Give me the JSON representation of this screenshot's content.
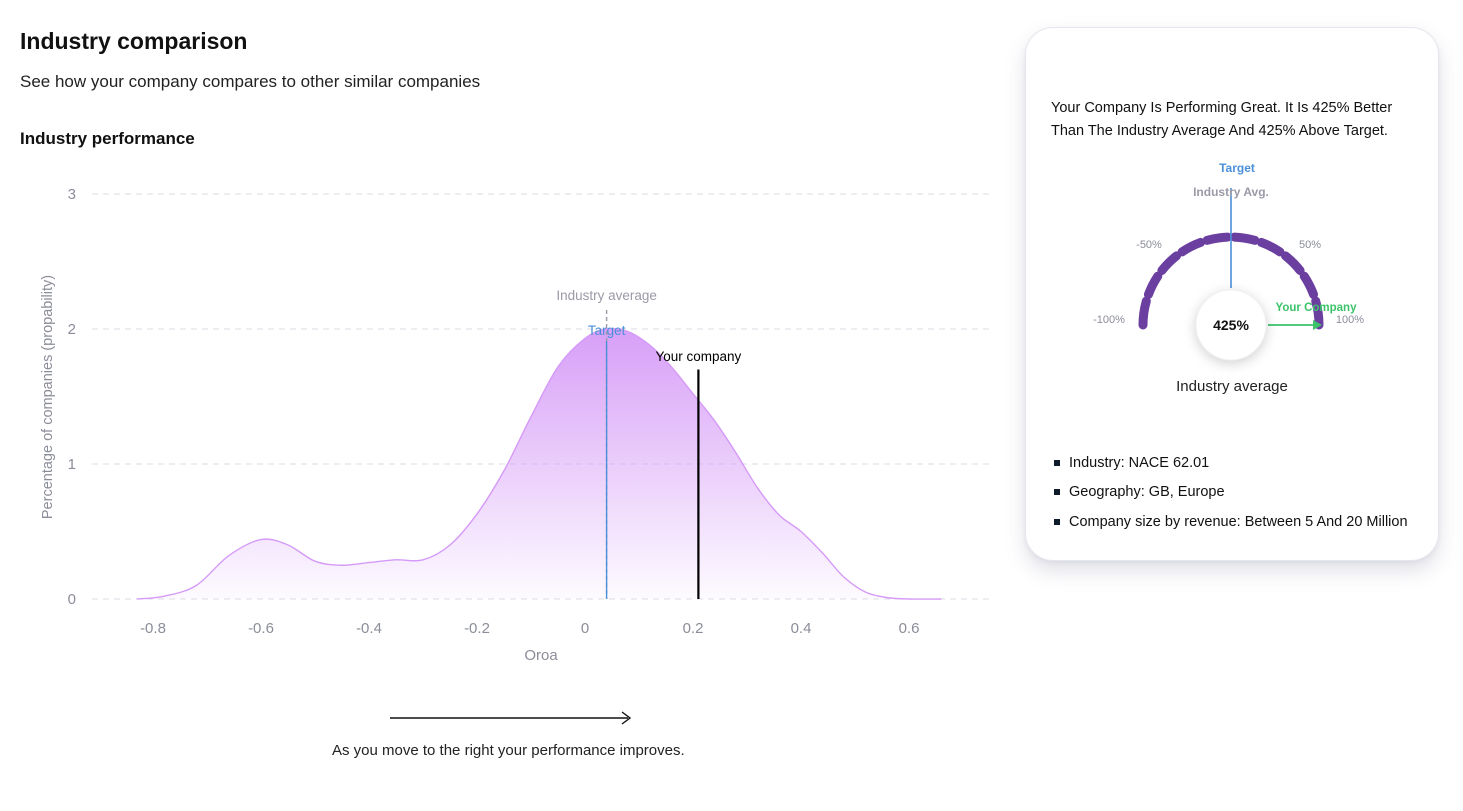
{
  "page": {
    "title": "Industry comparison",
    "subtitle": "See how your company compares to other similar companies",
    "section_title": "Industry performance",
    "hint_text": "As you move to the right your performance improves.",
    "hint_icon": "arrow-right-icon"
  },
  "chart_data": {
    "type": "area",
    "title": "",
    "xlabel": "Oroa",
    "ylabel": "Percentage of companies (propability)",
    "xlim": [
      -0.9,
      0.75
    ],
    "ylim": [
      0,
      3
    ],
    "x_ticks": [
      "-0.8",
      "-0.6",
      "-0.4",
      "-0.2",
      "0",
      "0.2",
      "0.4",
      "0.6"
    ],
    "x_tick_values": [
      -0.8,
      -0.6,
      -0.4,
      -0.2,
      0,
      0.2,
      0.4,
      0.6
    ],
    "y_ticks": [
      "0",
      "1",
      "2",
      "3"
    ],
    "y_tick_values": [
      0,
      1,
      2,
      3
    ],
    "grid": "horizontal-dashed",
    "series": [
      {
        "x": [
          -0.83,
          -0.78,
          -0.72,
          -0.66,
          -0.6,
          -0.55,
          -0.5,
          -0.45,
          -0.4,
          -0.35,
          -0.3,
          -0.25,
          -0.2,
          -0.15,
          -0.1,
          -0.05,
          0,
          0.04,
          0.08,
          0.12,
          0.16,
          0.2,
          0.24,
          0.28,
          0.32,
          0.36,
          0.4,
          0.44,
          0.48,
          0.52,
          0.56,
          0.6,
          0.66
        ],
        "y": [
          0.0,
          0.02,
          0.1,
          0.32,
          0.44,
          0.4,
          0.28,
          0.25,
          0.27,
          0.29,
          0.29,
          0.4,
          0.63,
          0.95,
          1.35,
          1.72,
          1.93,
          2.0,
          1.98,
          1.88,
          1.72,
          1.52,
          1.32,
          1.08,
          0.82,
          0.62,
          0.5,
          0.34,
          0.16,
          0.05,
          0.01,
          0.0,
          0.0
        ]
      }
    ],
    "markers": [
      {
        "label": "Industry average",
        "x": 0.04,
        "color": "#9a9aa8",
        "style": "dashed"
      },
      {
        "label": "Target",
        "x": 0.04,
        "color": "#4a90d9",
        "style": "solid"
      },
      {
        "label": "Your company",
        "x": 0.21,
        "y_top": 1.7,
        "color": "#000000",
        "style": "solid"
      }
    ],
    "colors": {
      "fill_top": "#d59af7",
      "line": "#d59af7",
      "target": "#4a90d9",
      "avg": "#9a9aa8",
      "company": "#000000",
      "axis_text": "#8b8d99"
    }
  },
  "card": {
    "summary": "Your Company Is Performing Great. It Is 425% Better Than The Industry Average And 425% Above Target.",
    "gauge": {
      "target_label": "Target",
      "avg_label": "Industry Avg.",
      "tick_labels": [
        "-100%",
        "-50%",
        "50%",
        "100%"
      ],
      "value_text": "425%",
      "value": 425,
      "company_label": "Your Company",
      "caption": "Industry average",
      "colors": {
        "arc": "#6b3fa0",
        "target": "#4a90d9",
        "avg": "#9a9aa8",
        "company": "#3cc36a"
      }
    },
    "filters": [
      "Industry: NACE 62.01",
      "Geography: GB, Europe",
      "Company size by revenue: Between 5 And 20 Million"
    ]
  }
}
